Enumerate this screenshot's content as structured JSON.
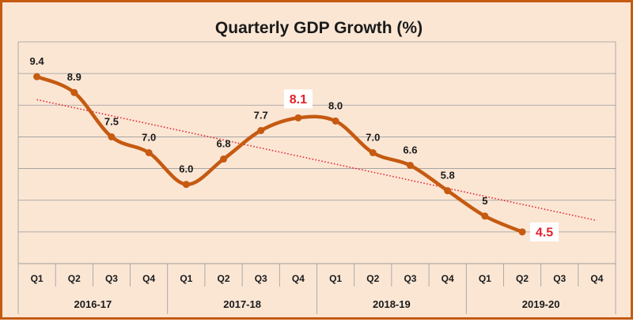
{
  "chart_data": {
    "type": "line",
    "title": "Quarterly GDP Growth (%)",
    "categories": [
      "Q1",
      "Q2",
      "Q3",
      "Q4",
      "Q1",
      "Q2",
      "Q3",
      "Q4",
      "Q1",
      "Q2",
      "Q3",
      "Q4",
      "Q1",
      "Q2",
      "Q3",
      "Q4"
    ],
    "groups": [
      {
        "label": "2016-17",
        "quarters": 4
      },
      {
        "label": "2017-18",
        "quarters": 4
      },
      {
        "label": "2018-19",
        "quarters": 4
      },
      {
        "label": "2019-20",
        "quarters": 4
      }
    ],
    "series": [
      {
        "name": "GDP Growth",
        "values": [
          9.4,
          8.9,
          7.5,
          7.0,
          6.0,
          6.8,
          7.7,
          8.1,
          8.0,
          7.0,
          6.6,
          5.8,
          5.0,
          4.5,
          null,
          null
        ],
        "labels": [
          "9.4",
          "8.9",
          "7.5",
          "7.0",
          "6.0",
          "6.8",
          "7.7",
          "8.1",
          "8.0",
          "7.0",
          "6.6",
          "5.8",
          "5",
          "4.5",
          "",
          ""
        ],
        "highlighted": [
          7,
          13
        ],
        "color": "#c55a11"
      }
    ],
    "trendline": {
      "type": "linear",
      "style": "dotted",
      "color": "#e5202a"
    },
    "ylim": [
      3.5,
      10.5
    ],
    "ygrid_step": 1,
    "ytick_labels_visible": false,
    "xlabel": "",
    "ylabel": "",
    "grid": true,
    "colors": {
      "background": "#fbe6d4",
      "border": "#c55a11",
      "line": "#c55a11",
      "highlight_label": "#e5202a",
      "trend": "#e5202a",
      "grid": "#9a9a9a"
    }
  }
}
